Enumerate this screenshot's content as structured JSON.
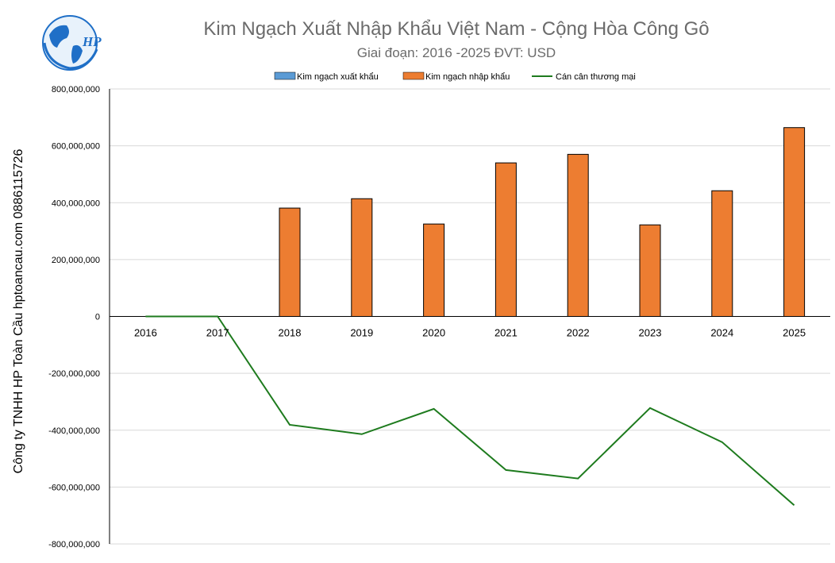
{
  "chart_data": {
    "type": "bar",
    "title": "Kim Ngạch Xuất Nhập Khẩu Việt Nam - Cộng Hòa Công Gô",
    "subtitle": "Giai đoạn: 2016 -2025  ĐVT: USD",
    "categories": [
      "2016",
      "2017",
      "2018",
      "2019",
      "2020",
      "2021",
      "2022",
      "2023",
      "2024",
      "2025"
    ],
    "series": [
      {
        "name": "Kim ngạch xuất khẩu",
        "type": "bar",
        "color": "#5b9bd5",
        "values": [
          0,
          0,
          0,
          0,
          0,
          0,
          0,
          0,
          0,
          0
        ]
      },
      {
        "name": "Kim ngạch nhập khẩu",
        "type": "bar",
        "color": "#ed7d31",
        "values": [
          0,
          0,
          381000000,
          414000000,
          325000000,
          540000000,
          570000000,
          322000000,
          442000000,
          664000000
        ]
      },
      {
        "name": "Cán cân thương mại",
        "type": "line",
        "color": "#1e7b1e",
        "values": [
          0,
          0,
          -381000000,
          -414000000,
          -325000000,
          -540000000,
          -570000000,
          -322000000,
          -442000000,
          -664000000
        ]
      }
    ],
    "ylim": [
      -800000000,
      800000000
    ],
    "ytick_step": 200000000,
    "yticks": [
      "800,000,000",
      "600,000,000",
      "400,000,000",
      "200,000,000",
      "0",
      "-200,000,000",
      "-400,000,000",
      "-600,000,000",
      "-800,000,000"
    ],
    "grid": true,
    "legend_position": "top"
  },
  "side_text": "Công ty TNHH HP Toàn Cầu hptoancau.com 0886115726",
  "logo_text": "HP",
  "colors": {
    "title": "#6b6b6b",
    "grid": "#d9d9d9",
    "bar_border": "#000000"
  }
}
